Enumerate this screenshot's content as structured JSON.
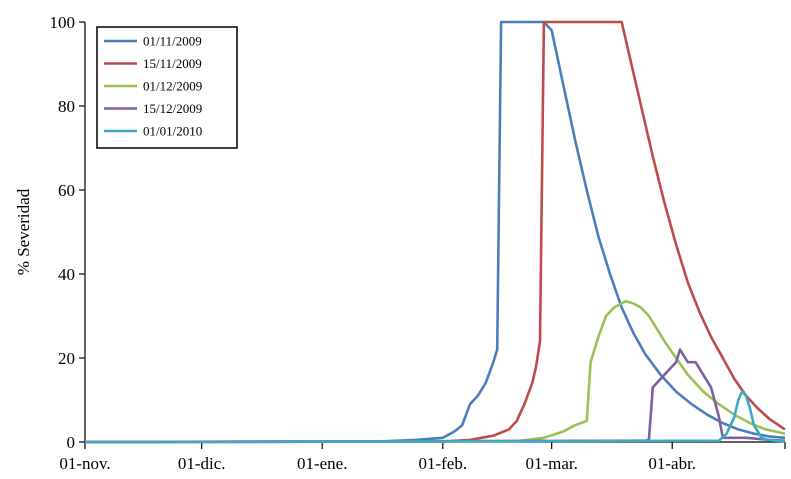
{
  "chart_data": {
    "type": "line",
    "title": "",
    "xlabel": "",
    "ylabel": "% Severidad",
    "ylim": [
      0,
      100
    ],
    "xlim": [
      "2009-11-01",
      "2010-04-30"
    ],
    "grid": false,
    "legend_position": "top-left",
    "x_ticks": [
      {
        "date": "2009-11-01",
        "label": "01-nov."
      },
      {
        "date": "2009-12-01",
        "label": "01-dic."
      },
      {
        "date": "2010-01-01",
        "label": "01-ene."
      },
      {
        "date": "2010-02-01",
        "label": "01-feb."
      },
      {
        "date": "2010-03-01",
        "label": "01-mar."
      },
      {
        "date": "2010-04-01",
        "label": "01-abr."
      }
    ],
    "y_ticks": [
      0,
      20,
      40,
      60,
      80,
      100
    ],
    "series": [
      {
        "name": "01/11/2009",
        "color": "#4a7ebb",
        "points": [
          [
            "2009-11-01",
            0
          ],
          [
            "2010-01-15",
            0.1
          ],
          [
            "2010-01-25",
            0.5
          ],
          [
            "2010-02-01",
            1
          ],
          [
            "2010-02-04",
            2.5
          ],
          [
            "2010-02-06",
            4
          ],
          [
            "2010-02-08",
            9
          ],
          [
            "2010-02-10",
            11
          ],
          [
            "2010-02-12",
            14
          ],
          [
            "2010-02-14",
            19
          ],
          [
            "2010-02-15",
            22
          ],
          [
            "2010-02-16",
            100
          ],
          [
            "2010-02-27",
            100
          ],
          [
            "2010-03-01",
            98
          ],
          [
            "2010-03-04",
            85
          ],
          [
            "2010-03-07",
            72
          ],
          [
            "2010-03-10",
            60
          ],
          [
            "2010-03-13",
            49
          ],
          [
            "2010-03-16",
            40
          ],
          [
            "2010-03-19",
            32
          ],
          [
            "2010-03-22",
            26
          ],
          [
            "2010-03-25",
            21
          ],
          [
            "2010-03-29",
            16
          ],
          [
            "2010-04-02",
            12
          ],
          [
            "2010-04-06",
            9
          ],
          [
            "2010-04-10",
            6.5
          ],
          [
            "2010-04-14",
            4.5
          ],
          [
            "2010-04-18",
            3
          ],
          [
            "2010-04-22",
            2
          ],
          [
            "2010-04-26",
            1.3
          ],
          [
            "2010-04-30",
            1
          ]
        ]
      },
      {
        "name": "15/11/2009",
        "color": "#be4b48",
        "points": [
          [
            "2009-11-01",
            0
          ],
          [
            "2010-02-01",
            0.1
          ],
          [
            "2010-02-08",
            0.5
          ],
          [
            "2010-02-14",
            1.5
          ],
          [
            "2010-02-18",
            3
          ],
          [
            "2010-02-20",
            5
          ],
          [
            "2010-02-22",
            9
          ],
          [
            "2010-02-24",
            14
          ],
          [
            "2010-02-25",
            18
          ],
          [
            "2010-02-26",
            24
          ],
          [
            "2010-02-27",
            100
          ],
          [
            "2010-03-19",
            100
          ],
          [
            "2010-03-21",
            92
          ],
          [
            "2010-03-24",
            80
          ],
          [
            "2010-03-27",
            68
          ],
          [
            "2010-03-30",
            57
          ],
          [
            "2010-04-02",
            47
          ],
          [
            "2010-04-05",
            38
          ],
          [
            "2010-04-08",
            31
          ],
          [
            "2010-04-11",
            25
          ],
          [
            "2010-04-14",
            20
          ],
          [
            "2010-04-17",
            15
          ],
          [
            "2010-04-20",
            11
          ],
          [
            "2010-04-23",
            8
          ],
          [
            "2010-04-26",
            5.5
          ],
          [
            "2010-04-30",
            3
          ]
        ]
      },
      {
        "name": "01/12/2009",
        "color": "#98c255",
        "points": [
          [
            "2009-11-01",
            0
          ],
          [
            "2010-02-20",
            0.2
          ],
          [
            "2010-02-27",
            1
          ],
          [
            "2010-03-04",
            2.5
          ],
          [
            "2010-03-07",
            4
          ],
          [
            "2010-03-10",
            5
          ],
          [
            "2010-03-11",
            19
          ],
          [
            "2010-03-13",
            25
          ],
          [
            "2010-03-15",
            30
          ],
          [
            "2010-03-17",
            32
          ],
          [
            "2010-03-19",
            33
          ],
          [
            "2010-03-20",
            33.5
          ],
          [
            "2010-03-22",
            33
          ],
          [
            "2010-03-24",
            32
          ],
          [
            "2010-03-26",
            30
          ],
          [
            "2010-03-28",
            27
          ],
          [
            "2010-03-30",
            24
          ],
          [
            "2010-04-02",
            20
          ],
          [
            "2010-04-05",
            16
          ],
          [
            "2010-04-09",
            12
          ],
          [
            "2010-04-13",
            9
          ],
          [
            "2010-04-17",
            6.5
          ],
          [
            "2010-04-21",
            4.5
          ],
          [
            "2010-04-25",
            3
          ],
          [
            "2010-04-30",
            2
          ]
        ]
      },
      {
        "name": "15/12/2009",
        "color": "#7d60a0",
        "points": [
          [
            "2009-11-01",
            0
          ],
          [
            "2010-03-25",
            0.3
          ],
          [
            "2010-03-26",
            0.5
          ],
          [
            "2010-03-27",
            13
          ],
          [
            "2010-03-30",
            16
          ],
          [
            "2010-04-02",
            19
          ],
          [
            "2010-04-03",
            22
          ],
          [
            "2010-04-05",
            19
          ],
          [
            "2010-04-07",
            19
          ],
          [
            "2010-04-09",
            16
          ],
          [
            "2010-04-11",
            13
          ],
          [
            "2010-04-13",
            6
          ],
          [
            "2010-04-14",
            1
          ],
          [
            "2010-04-20",
            1
          ],
          [
            "2010-04-26",
            0.5
          ],
          [
            "2010-04-30",
            0.3
          ]
        ]
      },
      {
        "name": "01/01/2010",
        "color": "#3fa8c4",
        "points": [
          [
            "2009-11-01",
            0
          ],
          [
            "2010-04-13",
            0.3
          ],
          [
            "2010-04-15",
            2
          ],
          [
            "2010-04-17",
            6
          ],
          [
            "2010-04-18",
            10
          ],
          [
            "2010-04-19",
            12
          ],
          [
            "2010-04-20",
            11
          ],
          [
            "2010-04-21",
            8
          ],
          [
            "2010-04-22",
            4
          ],
          [
            "2010-04-24",
            1
          ],
          [
            "2010-04-26",
            0.4
          ],
          [
            "2010-04-30",
            0.2
          ]
        ]
      }
    ]
  }
}
